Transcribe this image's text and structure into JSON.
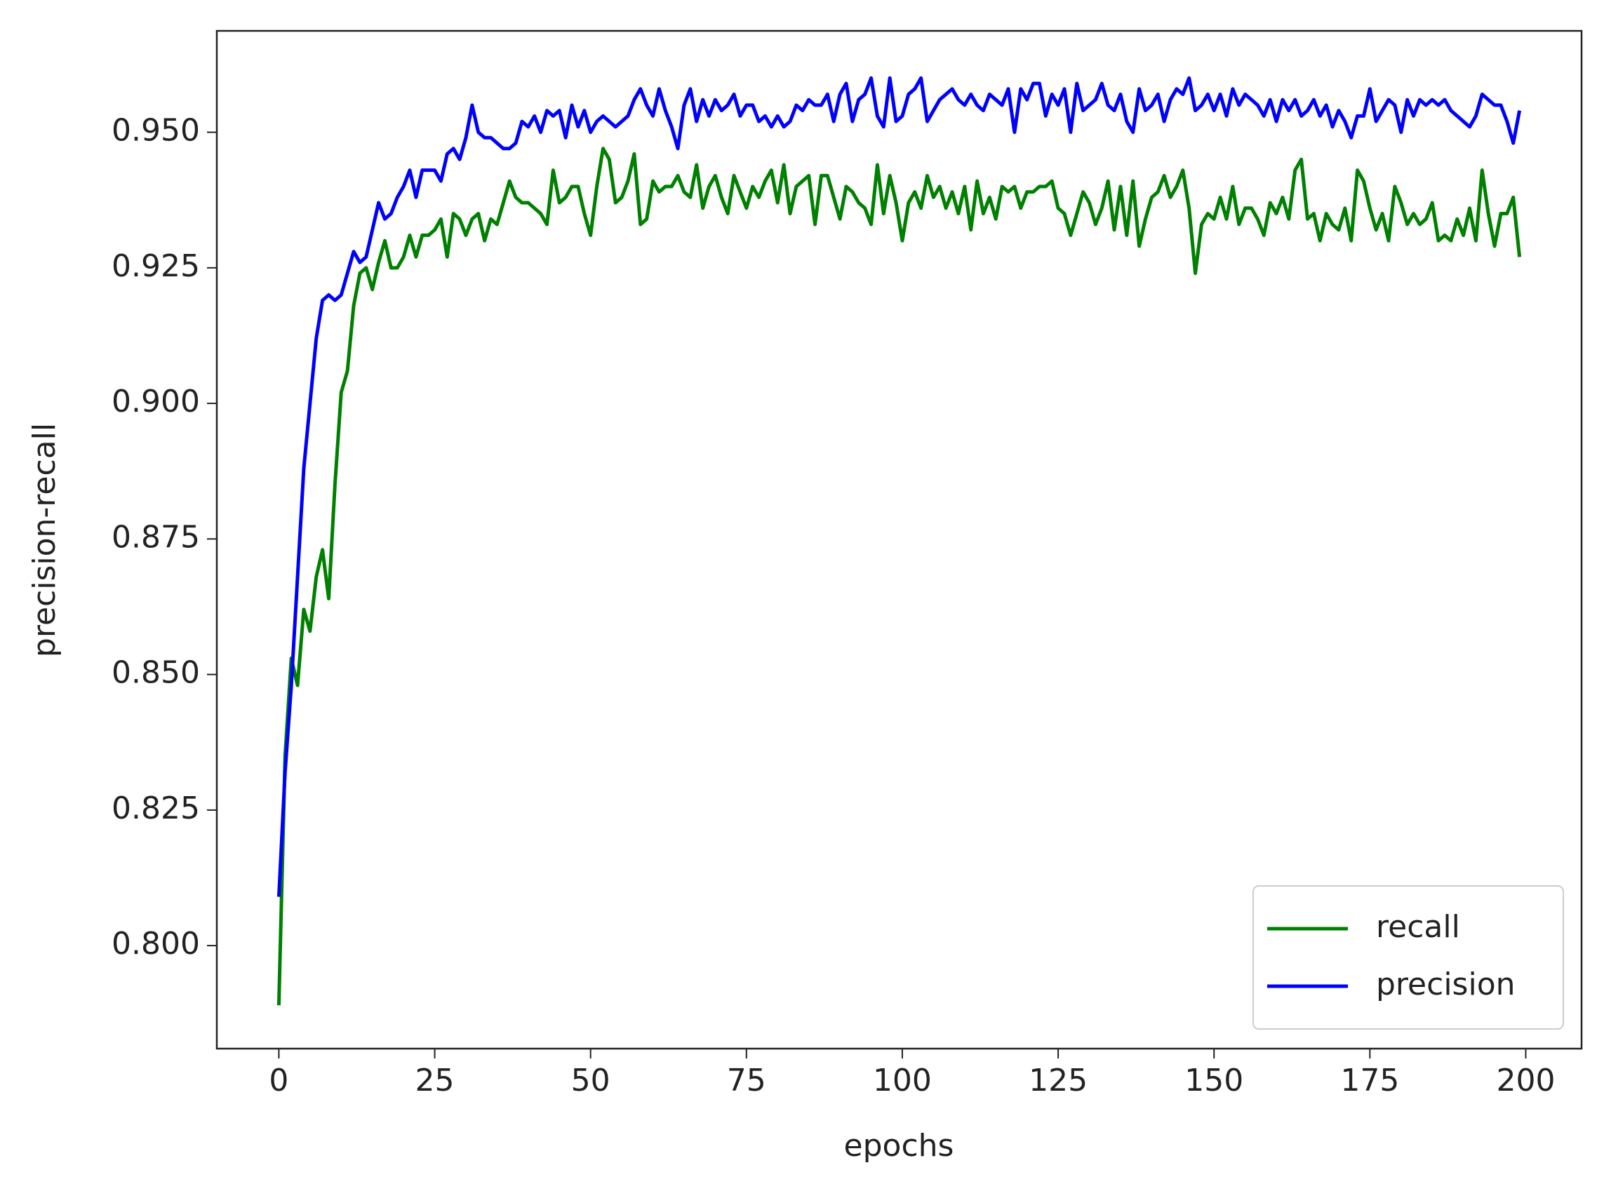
{
  "chart_data": {
    "type": "line",
    "xlabel": "epochs",
    "ylabel": "precision-recall",
    "x": [
      0,
      1,
      2,
      3,
      4,
      5,
      6,
      7,
      8,
      9,
      10,
      11,
      12,
      13,
      14,
      15,
      16,
      17,
      18,
      19,
      20,
      21,
      22,
      23,
      24,
      25,
      26,
      27,
      28,
      29,
      30,
      31,
      32,
      33,
      34,
      35,
      36,
      37,
      38,
      39,
      40,
      41,
      42,
      43,
      44,
      45,
      46,
      47,
      48,
      49,
      50,
      51,
      52,
      53,
      54,
      55,
      56,
      57,
      58,
      59,
      60,
      61,
      62,
      63,
      64,
      65,
      66,
      67,
      68,
      69,
      70,
      71,
      72,
      73,
      74,
      75,
      76,
      77,
      78,
      79,
      80,
      81,
      82,
      83,
      84,
      85,
      86,
      87,
      88,
      89,
      90,
      91,
      92,
      93,
      94,
      95,
      96,
      97,
      98,
      99,
      100,
      101,
      102,
      103,
      104,
      105,
      106,
      107,
      108,
      109,
      110,
      111,
      112,
      113,
      114,
      115,
      116,
      117,
      118,
      119,
      120,
      121,
      122,
      123,
      124,
      125,
      126,
      127,
      128,
      129,
      130,
      131,
      132,
      133,
      134,
      135,
      136,
      137,
      138,
      139,
      140,
      141,
      142,
      143,
      144,
      145,
      146,
      147,
      148,
      149,
      150,
      151,
      152,
      153,
      154,
      155,
      156,
      157,
      158,
      159,
      160,
      161,
      162,
      163,
      164,
      165,
      166,
      167,
      168,
      169,
      170,
      171,
      172,
      173,
      174,
      175,
      176,
      177,
      178,
      179,
      180,
      181,
      182,
      183,
      184,
      185,
      186,
      187,
      188,
      189,
      190,
      191,
      192,
      193,
      194,
      195,
      196,
      197,
      198,
      199
    ],
    "series": [
      {
        "name": "recall",
        "color": "#008000",
        "values": [
          0.789,
          0.835,
          0.853,
          0.848,
          0.862,
          0.858,
          0.868,
          0.873,
          0.864,
          0.885,
          0.902,
          0.906,
          0.918,
          0.924,
          0.925,
          0.921,
          0.926,
          0.93,
          0.925,
          0.925,
          0.927,
          0.931,
          0.927,
          0.931,
          0.931,
          0.932,
          0.934,
          0.927,
          0.935,
          0.934,
          0.931,
          0.934,
          0.935,
          0.93,
          0.934,
          0.933,
          0.937,
          0.941,
          0.938,
          0.937,
          0.937,
          0.936,
          0.935,
          0.933,
          0.943,
          0.937,
          0.938,
          0.94,
          0.94,
          0.935,
          0.931,
          0.94,
          0.947,
          0.945,
          0.937,
          0.938,
          0.941,
          0.946,
          0.933,
          0.934,
          0.941,
          0.939,
          0.94,
          0.94,
          0.942,
          0.939,
          0.938,
          0.944,
          0.936,
          0.94,
          0.942,
          0.938,
          0.935,
          0.942,
          0.939,
          0.936,
          0.94,
          0.938,
          0.941,
          0.943,
          0.937,
          0.944,
          0.935,
          0.94,
          0.941,
          0.942,
          0.933,
          0.942,
          0.942,
          0.938,
          0.934,
          0.94,
          0.939,
          0.937,
          0.936,
          0.933,
          0.944,
          0.935,
          0.942,
          0.937,
          0.93,
          0.937,
          0.939,
          0.936,
          0.942,
          0.938,
          0.94,
          0.936,
          0.939,
          0.935,
          0.94,
          0.932,
          0.941,
          0.935,
          0.938,
          0.934,
          0.94,
          0.939,
          0.94,
          0.936,
          0.939,
          0.939,
          0.94,
          0.94,
          0.941,
          0.936,
          0.935,
          0.931,
          0.935,
          0.939,
          0.937,
          0.933,
          0.936,
          0.941,
          0.932,
          0.94,
          0.931,
          0.941,
          0.929,
          0.934,
          0.938,
          0.939,
          0.942,
          0.938,
          0.94,
          0.943,
          0.936,
          0.924,
          0.933,
          0.935,
          0.934,
          0.938,
          0.934,
          0.94,
          0.933,
          0.936,
          0.936,
          0.934,
          0.931,
          0.937,
          0.935,
          0.938,
          0.934,
          0.943,
          0.945,
          0.934,
          0.935,
          0.93,
          0.935,
          0.933,
          0.932,
          0.936,
          0.93,
          0.943,
          0.941,
          0.936,
          0.932,
          0.935,
          0.93,
          0.94,
          0.937,
          0.933,
          0.935,
          0.933,
          0.934,
          0.937,
          0.93,
          0.931,
          0.93,
          0.934,
          0.931,
          0.936,
          0.93,
          0.943,
          0.935,
          0.929,
          0.935,
          0.935,
          0.938,
          0.927
        ]
      },
      {
        "name": "precision",
        "color": "#0000ff",
        "values": [
          0.809,
          0.832,
          0.848,
          0.868,
          0.888,
          0.9,
          0.912,
          0.919,
          0.92,
          0.919,
          0.92,
          0.924,
          0.928,
          0.926,
          0.927,
          0.932,
          0.937,
          0.934,
          0.935,
          0.938,
          0.94,
          0.943,
          0.938,
          0.943,
          0.943,
          0.943,
          0.941,
          0.946,
          0.947,
          0.945,
          0.949,
          0.955,
          0.95,
          0.949,
          0.949,
          0.948,
          0.947,
          0.947,
          0.948,
          0.952,
          0.951,
          0.953,
          0.95,
          0.954,
          0.953,
          0.954,
          0.949,
          0.955,
          0.951,
          0.954,
          0.95,
          0.952,
          0.953,
          0.952,
          0.951,
          0.952,
          0.953,
          0.956,
          0.958,
          0.955,
          0.953,
          0.958,
          0.954,
          0.951,
          0.947,
          0.955,
          0.958,
          0.952,
          0.956,
          0.953,
          0.956,
          0.954,
          0.955,
          0.957,
          0.953,
          0.955,
          0.955,
          0.952,
          0.953,
          0.951,
          0.953,
          0.951,
          0.952,
          0.955,
          0.954,
          0.956,
          0.955,
          0.955,
          0.957,
          0.952,
          0.957,
          0.959,
          0.952,
          0.956,
          0.957,
          0.96,
          0.953,
          0.951,
          0.96,
          0.952,
          0.953,
          0.957,
          0.958,
          0.96,
          0.952,
          0.954,
          0.956,
          0.957,
          0.958,
          0.956,
          0.955,
          0.957,
          0.955,
          0.954,
          0.957,
          0.956,
          0.955,
          0.958,
          0.95,
          0.958,
          0.956,
          0.959,
          0.959,
          0.953,
          0.957,
          0.955,
          0.958,
          0.95,
          0.959,
          0.954,
          0.955,
          0.956,
          0.959,
          0.955,
          0.954,
          0.957,
          0.952,
          0.95,
          0.958,
          0.954,
          0.955,
          0.957,
          0.952,
          0.956,
          0.958,
          0.957,
          0.96,
          0.954,
          0.955,
          0.957,
          0.954,
          0.957,
          0.953,
          0.958,
          0.955,
          0.957,
          0.956,
          0.955,
          0.953,
          0.956,
          0.952,
          0.956,
          0.954,
          0.956,
          0.953,
          0.954,
          0.956,
          0.953,
          0.955,
          0.951,
          0.954,
          0.952,
          0.949,
          0.953,
          0.953,
          0.958,
          0.952,
          0.954,
          0.956,
          0.955,
          0.95,
          0.956,
          0.953,
          0.956,
          0.955,
          0.956,
          0.955,
          0.956,
          0.954,
          0.953,
          0.952,
          0.951,
          0.953,
          0.957,
          0.956,
          0.955,
          0.955,
          0.952,
          0.948,
          0.954
        ]
      }
    ],
    "xlim": [
      -9.95,
      208.95
    ],
    "xticks": [
      0,
      25,
      50,
      75,
      100,
      125,
      150,
      175,
      200
    ],
    "ylim": [
      0.781,
      0.9687
    ],
    "yticks": [
      {
        "value": 0.8,
        "label": "0.800"
      },
      {
        "value": 0.825,
        "label": "0.825"
      },
      {
        "value": 0.85,
        "label": "0.850"
      },
      {
        "value": 0.875,
        "label": "0.875"
      },
      {
        "value": 0.9,
        "label": "0.900"
      },
      {
        "value": 0.925,
        "label": "0.925"
      },
      {
        "value": 0.95,
        "label": "0.950"
      }
    ],
    "legend": "lower right"
  }
}
